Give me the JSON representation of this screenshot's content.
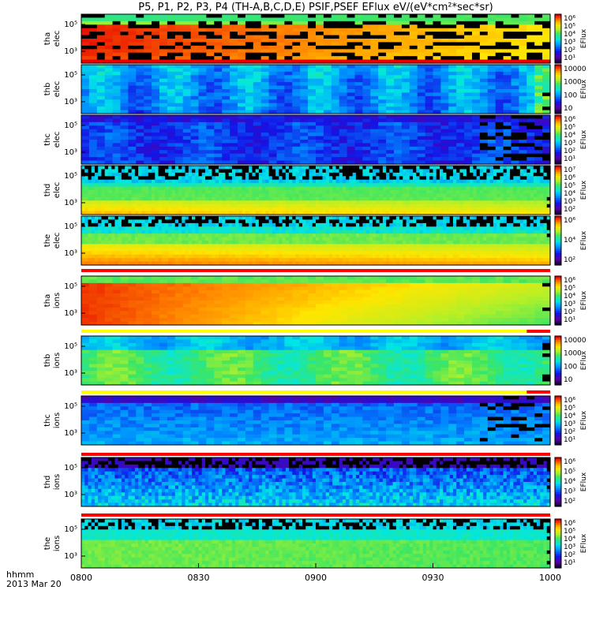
{
  "chart_data": {
    "type": "heatmap",
    "title": "P5, P1, P2, P3, P4 (TH-A,B,C,D,E) PSIF,PSEF EFlux eV/(eV*cm²*sec*sr)",
    "x_ticks": [
      "0800",
      "0830",
      "0900",
      "0930",
      "1000"
    ],
    "x_range": [
      "08:00",
      "10:00"
    ],
    "x_caption": [
      "hhmm",
      "2013 Mar 20"
    ],
    "y_scale": "log",
    "colorbar_label": "EFlux",
    "panels": [
      {
        "probe": "tha",
        "species": "elec",
        "ylabel": [
          "tha",
          "elec"
        ],
        "y_ticks": [
          "10⁵",
          "10³"
        ],
        "cb_ticks": [
          "10⁶",
          "10⁵",
          "10⁴",
          "10³",
          "10²",
          "10¹"
        ],
        "pattern": "intense",
        "fill_start": 0.0,
        "status_bar": null
      },
      {
        "probe": "thb",
        "species": "elec",
        "ylabel": [
          "thb",
          "elec"
        ],
        "y_ticks": [
          "10⁵",
          "10³"
        ],
        "cb_ticks": [
          "10000",
          "1000",
          "100",
          "10"
        ],
        "pattern": "low",
        "fill_start": 1.0,
        "status_bar": null
      },
      {
        "probe": "thc",
        "species": "elec",
        "ylabel": [
          "thc",
          "elec"
        ],
        "y_ticks": [
          "10⁵",
          "10³"
        ],
        "cb_ticks": [
          "10⁶",
          "10⁵",
          "10⁴",
          "10³",
          "10²",
          "10¹"
        ],
        "pattern": "verylow",
        "fill_start": 0.85,
        "status_bar": null
      },
      {
        "probe": "thd",
        "species": "elec",
        "ylabel": [
          "thd",
          "elec"
        ],
        "y_ticks": [
          "10⁵",
          "10³"
        ],
        "cb_ticks": [
          "10⁷",
          "10⁶",
          "10⁵",
          "10⁴",
          "10³",
          "10²"
        ],
        "pattern": "striped",
        "fill_start": 1.0,
        "status_bar": null
      },
      {
        "probe": "the",
        "species": "elec",
        "ylabel": [
          "the",
          "elec"
        ],
        "y_ticks": [
          "10⁵",
          "10³"
        ],
        "cb_ticks": [
          "10⁶",
          "10⁴",
          "10²"
        ],
        "pattern": "striped2",
        "fill_start": 1.0,
        "status_bar": {
          "segments": [
            [
              0,
              1,
              "red"
            ]
          ]
        }
      },
      {
        "probe": "tha",
        "species": "ions",
        "ylabel": [
          "tha",
          "ions"
        ],
        "y_ticks": [
          "10⁵",
          "10³"
        ],
        "cb_ticks": [
          "10⁶",
          "10⁵",
          "10⁴",
          "10³",
          "10²",
          "10¹"
        ],
        "pattern": "ionhot",
        "fill_start": 1.0,
        "status_bar": {
          "segments": [
            [
              0,
              0.95,
              "yellow"
            ],
            [
              0.95,
              1,
              "red"
            ]
          ]
        }
      },
      {
        "probe": "thb",
        "species": "ions",
        "ylabel": [
          "thb",
          "ions"
        ],
        "y_ticks": [
          "10⁵",
          "10³"
        ],
        "cb_ticks": [
          "10000",
          "1000",
          "100",
          "10"
        ],
        "pattern": "ionmid",
        "fill_start": 1.0,
        "status_bar": {
          "segments": [
            [
              0,
              0.95,
              "yellow"
            ],
            [
              0.95,
              1,
              "red"
            ]
          ]
        }
      },
      {
        "probe": "thc",
        "species": "ions",
        "ylabel": [
          "thc",
          "ions"
        ],
        "y_ticks": [
          "10⁵",
          "10³"
        ],
        "cb_ticks": [
          "10⁶",
          "10⁵",
          "10⁴",
          "10³",
          "10²",
          "10¹"
        ],
        "pattern": "ionlow",
        "fill_start": 0.85,
        "status_bar": {
          "segments": [
            [
              0,
              1,
              "red"
            ]
          ]
        }
      },
      {
        "probe": "thd",
        "species": "ions",
        "ylabel": [
          "thd",
          "ions"
        ],
        "y_ticks": [
          "10⁵",
          "10³"
        ],
        "cb_ticks": [
          "10⁶",
          "10⁵",
          "10⁴",
          "10³",
          "10²"
        ],
        "pattern": "ionnoisy",
        "fill_start": 1.0,
        "status_bar": {
          "segments": [
            [
              0,
              1,
              "red"
            ]
          ]
        }
      },
      {
        "probe": "the",
        "species": "ions",
        "ylabel": [
          "the",
          "ions"
        ],
        "y_ticks": [
          "10⁵",
          "10³"
        ],
        "cb_ticks": [
          "10⁶",
          "10⁵",
          "10⁴",
          "10³",
          "10²",
          "10¹"
        ],
        "pattern": "ionthe",
        "fill_start": 1.0,
        "status_bar": null
      }
    ]
  }
}
